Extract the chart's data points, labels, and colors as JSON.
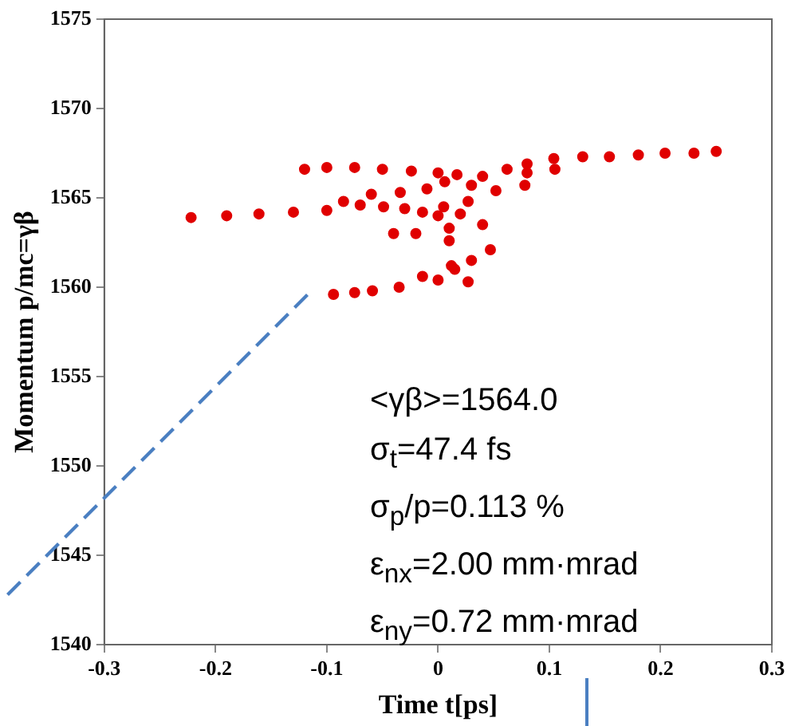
{
  "chart_data": {
    "type": "scatter",
    "xlabel": "Time t[ps]",
    "ylabel": "Momentum p/mc=γβ",
    "xlim": [
      -0.3,
      0.3
    ],
    "xticks": [
      -0.3,
      -0.2,
      -0.1,
      0,
      0.1,
      0.2,
      0.3
    ],
    "ylim": [
      1540,
      1575
    ],
    "yticks": [
      1540,
      1545,
      1550,
      1555,
      1560,
      1565,
      1570,
      1575
    ],
    "grid": false,
    "legend": false,
    "marker": "circle",
    "series": [
      {
        "color": "#e00000",
        "x": [
          -0.222,
          -0.19,
          -0.161,
          -0.13,
          -0.1,
          -0.12,
          -0.1,
          -0.075,
          -0.05,
          -0.024,
          0,
          0.017,
          0.04,
          0.062,
          0.08,
          0.104,
          0.13,
          0.154,
          0.18,
          0.204,
          0.23,
          0.25,
          0.08,
          0.105,
          -0.085,
          -0.07,
          -0.049,
          -0.03,
          -0.014,
          0.005,
          0.027,
          0.052,
          0.078,
          -0.06,
          -0.034,
          -0.01,
          0.006,
          0.03,
          0,
          0.02,
          0.04,
          0.012,
          0.047,
          0.027,
          0.01,
          -0.094,
          -0.075,
          -0.059,
          -0.035,
          -0.014,
          0.0,
          0.015,
          0.03,
          0.01,
          -0.02,
          -0.04
        ],
        "values": [
          1563.9,
          1564.0,
          1564.1,
          1564.2,
          1564.3,
          1566.6,
          1566.7,
          1566.7,
          1566.6,
          1566.5,
          1566.4,
          1566.3,
          1566.2,
          1566.6,
          1566.9,
          1567.2,
          1567.3,
          1567.3,
          1567.4,
          1567.5,
          1567.5,
          1567.6,
          1566.4,
          1566.6,
          1564.8,
          1564.6,
          1564.5,
          1564.4,
          1564.2,
          1564.5,
          1564.8,
          1565.4,
          1565.7,
          1565.2,
          1565.3,
          1565.5,
          1565.9,
          1565.7,
          1564.0,
          1564.1,
          1563.5,
          1561.2,
          1562.1,
          1560.3,
          1562.6,
          1559.6,
          1559.7,
          1559.8,
          1560.0,
          1560.6,
          1560.4,
          1561.0,
          1561.5,
          1563.3,
          1563.0,
          1563.0
        ]
      }
    ],
    "annotations": [
      "<γβ>=1564.0",
      "σ$_{t}$=47.4 fs",
      "σ$_{p}$/p=0.113 %",
      "ε$_{nx}$=2.00 mm·mrad",
      "ε$_{ny}$=0.72 mm·mrad"
    ]
  }
}
